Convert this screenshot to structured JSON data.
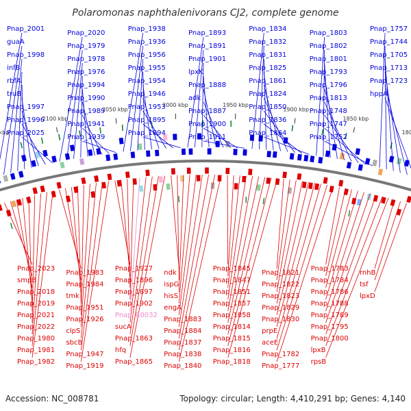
{
  "title": "Polaromonas naphthalenivorans CJ2, complete genome",
  "footer": {
    "accession": "Accession: NC_008781",
    "stats": "Topology: circular; Length: 4,410,291 bp; Genes: 4,140"
  },
  "colors": {
    "forward_strand": "#0000dd",
    "reverse_strand": "#dd0000",
    "pseudo_label": "#ee88cc",
    "backbone": "#777777",
    "rrna_marker": "#118833"
  },
  "ticks": [
    "2150 kbp",
    "2100 kbp",
    "2050 kbp",
    "2000 kbp",
    "1950 kbp",
    "1900 kbp",
    "1850 kbp",
    "1800 kbp"
  ],
  "forward_genes": [
    "Pnap_2001",
    "guaA",
    "Pnap_1998",
    "infB",
    "rbfA",
    "truB",
    "Pnap_1997",
    "Pnap_1996",
    "Pnap_2025",
    "Pnap_2020",
    "Pnap_1979",
    "Pnap_1978",
    "Pnap_1976",
    "Pnap_1994",
    "Pnap_1990",
    "Pnap_1989",
    "Pnap_1941",
    "Pnap_1939",
    "Pnap_1938",
    "Pnap_1936",
    "Pnap_1956",
    "Pnap_1955",
    "Pnap_1954",
    "Pnap_1946",
    "Pnap_1953",
    "Pnap_1895",
    "Pnap_1894",
    "Pnap_1893",
    "Pnap_1891",
    "Pnap_1901",
    "lpxK",
    "Pnap_1888",
    "adk",
    "Pnap_1887",
    "Pnap_1900",
    "Pnap_1911",
    "Pnap_1834",
    "Pnap_1832",
    "Pnap_1831",
    "Pnap_1825",
    "Pnap_1861",
    "Pnap_1824",
    "Pnap_1850",
    "Pnap_1836",
    "Pnap_1864",
    "Pnap_1803",
    "Pnap_1802",
    "Pnap_1801",
    "Pnap_1793",
    "Pnap_1796",
    "Pnap_1813",
    "Pnap_1748",
    "Pnap_1747",
    "Pnap_1752",
    "Pnap_1757",
    "Pnap_1744",
    "Pnap_1705",
    "Pnap_1713",
    "Pnap_1723",
    "hppA"
  ],
  "reverse_genes": [
    "Pnap_2023",
    "smpB",
    "Pnap_2018",
    "Pnap_2019",
    "Pnap_2021",
    "Pnap_2022",
    "Pnap_1980",
    "Pnap_1981",
    "Pnap_1982",
    "Pnap_1983",
    "Pnap_1984",
    "tmk",
    "Pnap_1951",
    "Pnap_1926",
    "clpS",
    "sbcB",
    "Pnap_1947",
    "Pnap_1919",
    "Pnap_1927",
    "Pnap_1896",
    "Pnap_1897",
    "Pnap_1902",
    "Pnap_R0032",
    "sucA",
    "Pnap_1863",
    "hfq",
    "Pnap_1865",
    "ndk",
    "ispG",
    "hisS",
    "engA",
    "Pnap_1883",
    "Pnap_1884",
    "Pnap_1837",
    "Pnap_1838",
    "Pnap_1840",
    "Pnap_1845",
    "Pnap_1847",
    "Pnap_1851",
    "Pnap_1857",
    "Pnap_1858",
    "Pnap_1814",
    "Pnap_1815",
    "Pnap_1816",
    "Pnap_1818",
    "Pnap_1821",
    "Pnap_1822",
    "Pnap_1823",
    "Pnap_1829",
    "Pnap_1830",
    "prpE",
    "aceE",
    "Pnap_1782",
    "Pnap_1777",
    "Pnap_1783",
    "Pnap_1784",
    "Pnap_1786",
    "Pnap_1788",
    "Pnap_1789",
    "Pnap_1795",
    "Pnap_1800",
    "lpxB",
    "rpsB",
    "rnhB",
    "tsf",
    "lpxD"
  ]
}
